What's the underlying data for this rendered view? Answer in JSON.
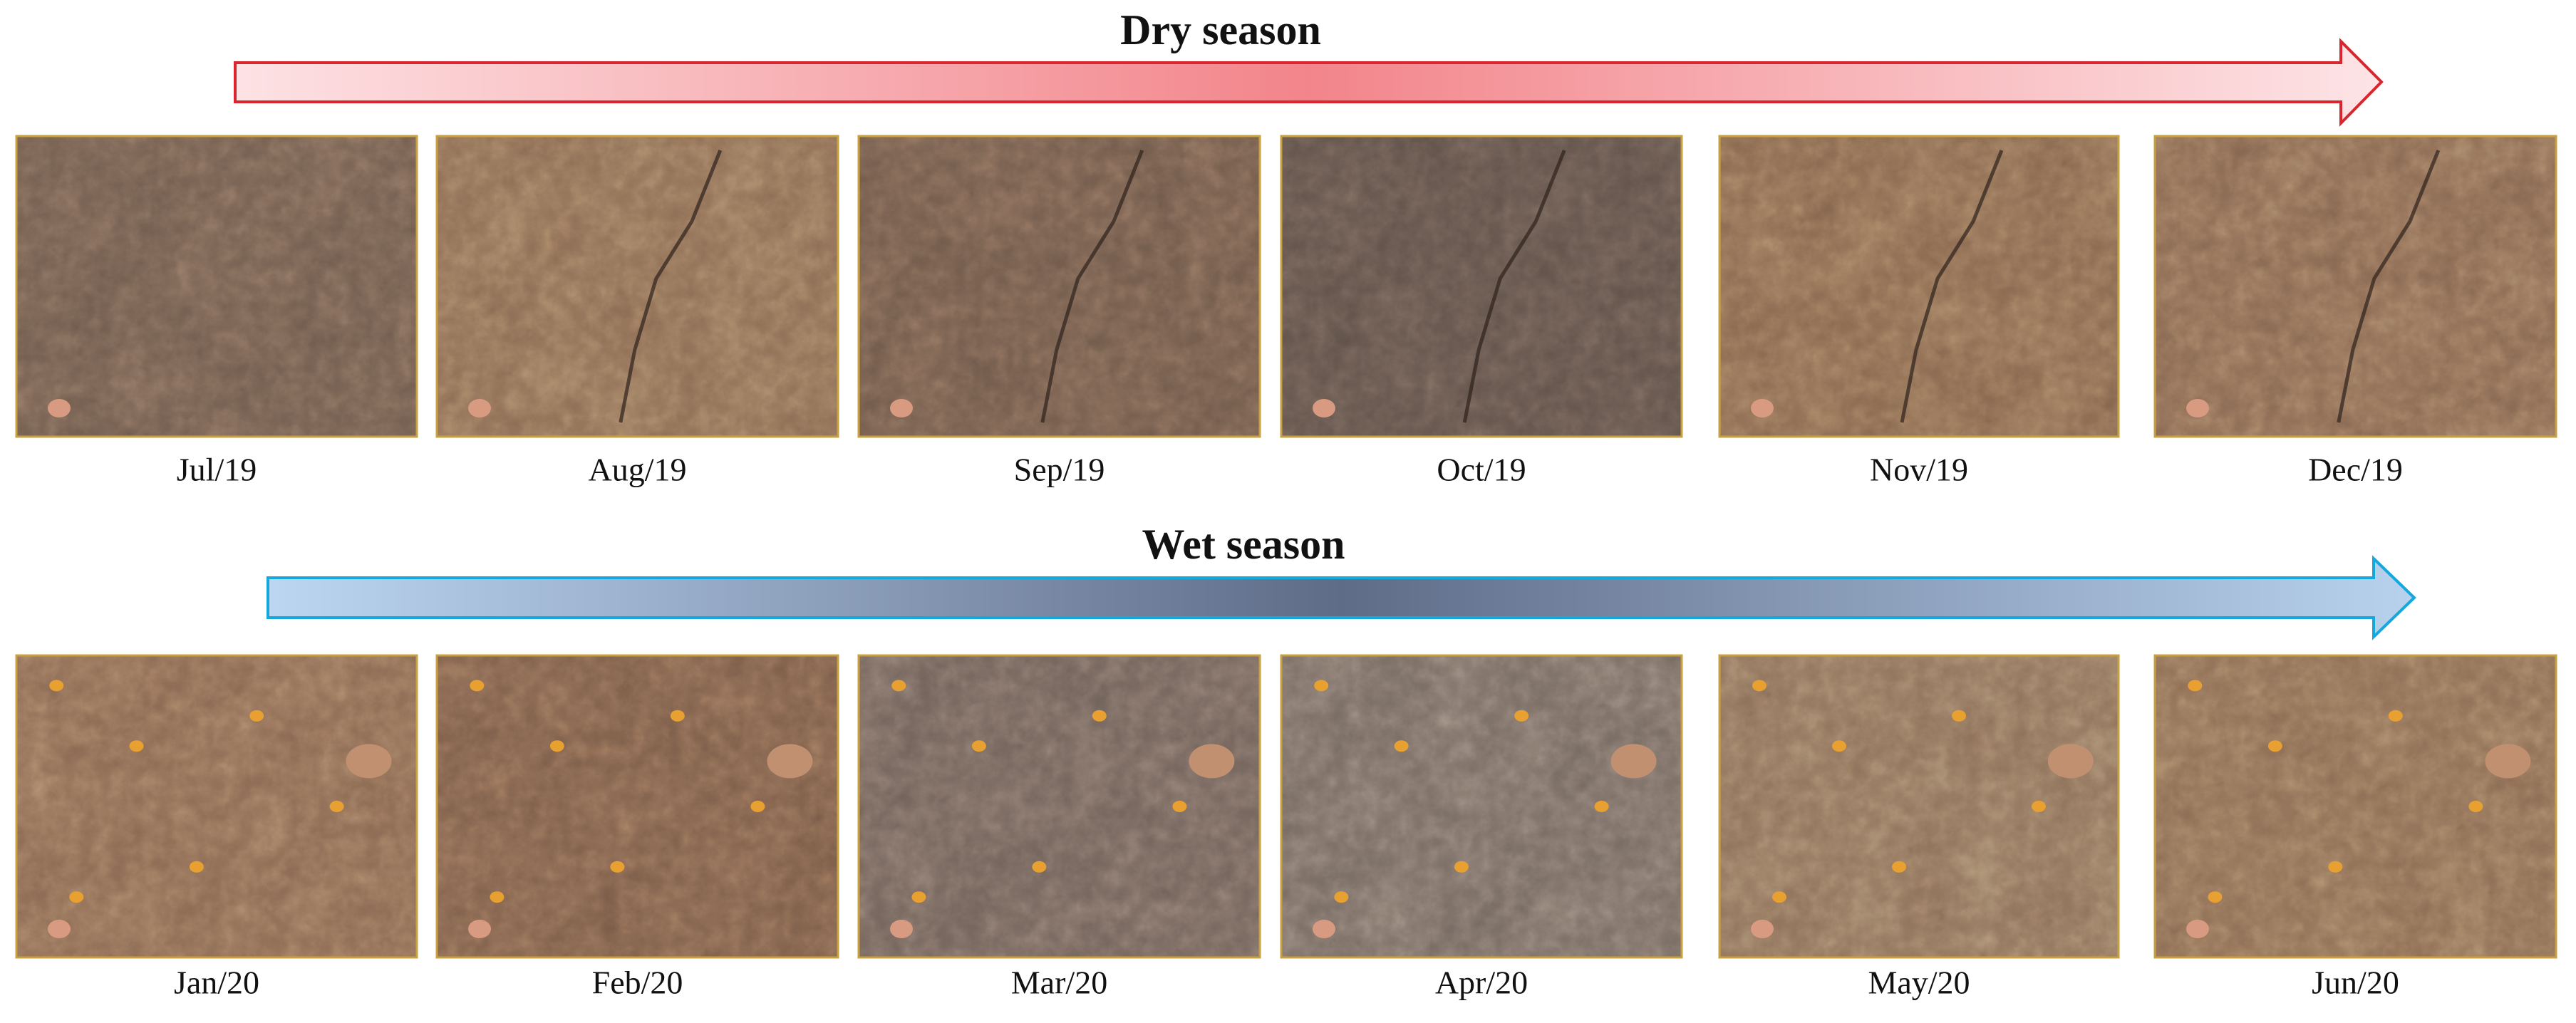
{
  "dry_season": {
    "title": "Dry season",
    "photos": [
      {
        "label": "Jul/19"
      },
      {
        "label": "Aug/19"
      },
      {
        "label": "Sep/19"
      },
      {
        "label": "Oct/19"
      },
      {
        "label": "Nov/19"
      },
      {
        "label": "Dec/19"
      }
    ]
  },
  "wet_season": {
    "title": "Wet season",
    "photos": [
      {
        "label": "Jan/20"
      },
      {
        "label": "Feb/20"
      },
      {
        "label": "Mar/20"
      },
      {
        "label": "Apr/20"
      },
      {
        "label": "May/20"
      },
      {
        "label": "Jun/20"
      }
    ]
  }
}
